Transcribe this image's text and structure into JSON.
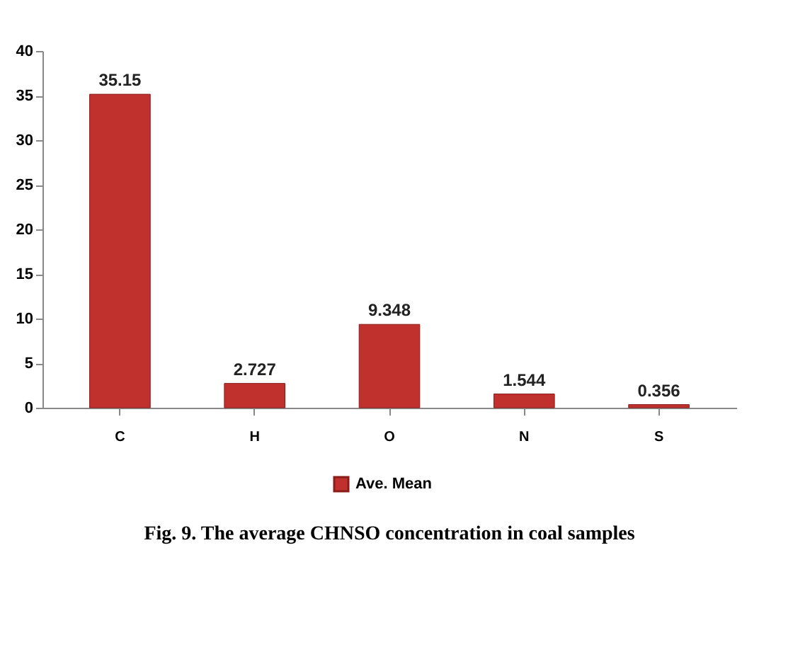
{
  "chart_data": {
    "type": "bar",
    "categories": [
      "C",
      "H",
      "O",
      "N",
      "S"
    ],
    "series": [
      {
        "name": "Ave. Mean",
        "color": "#c0302c",
        "values": [
          35.15,
          2.727,
          9.348,
          1.544,
          0.356
        ]
      }
    ],
    "ylim": [
      0,
      40
    ],
    "yticks": [
      0,
      5,
      10,
      15,
      20,
      25,
      30,
      35,
      40
    ],
    "data_labels": true,
    "legend": "bottom",
    "grid": false,
    "annotations": [
      "Fig. 9. The average CHNSO concentration  in coal samples"
    ]
  }
}
